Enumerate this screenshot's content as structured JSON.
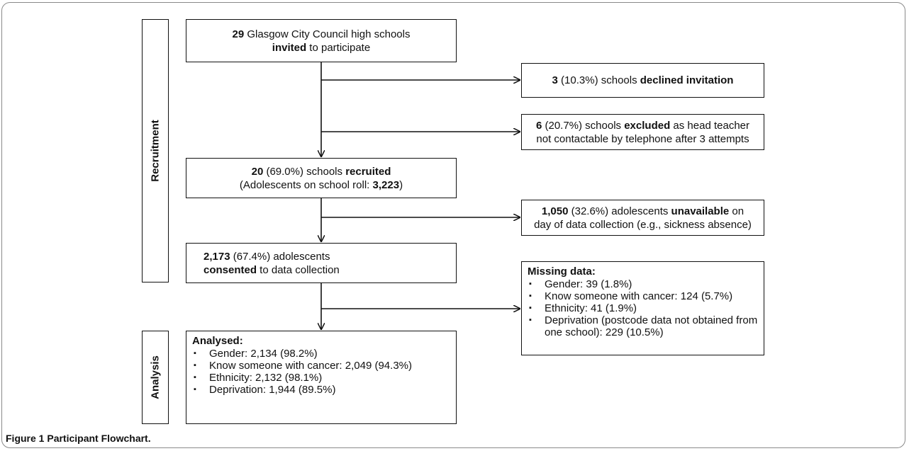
{
  "side_labels": {
    "recruitment": "Recruitment",
    "analysis": "Analysis"
  },
  "boxes": {
    "invited": {
      "bold1": "29",
      "t1": " Glasgow City Council high schools",
      "bold2": "invited",
      "t2": " to participate"
    },
    "declined": {
      "bold1": "3",
      "t1": " (10.3%) schools ",
      "bold2": "declined invitation"
    },
    "excluded": {
      "bold1": "6",
      "t1": " (20.7%) schools ",
      "bold2": "excluded",
      "t2": " as head teacher",
      "line2": "not contactable by telephone after 3 attempts"
    },
    "recruited": {
      "bold1": "20",
      "t1": " (69.0%) schools ",
      "bold2": "recruited",
      "line2a": "(Adolescents on school roll: ",
      "bold3": "3,223",
      "line2b": ")"
    },
    "unavailable": {
      "bold1": "1,050",
      "t1": " (32.6%) adolescents ",
      "bold2": "unavailable",
      "t2": " on",
      "line2": "day of data collection (e.g., sickness absence)"
    },
    "consented": {
      "bold1": "2,173",
      "t1": " (67.4%) adolescents",
      "bold2": "consented",
      "t2": " to data collection"
    }
  },
  "missing": {
    "title": "Missing data:",
    "items": [
      "Gender: 39 (1.8%)",
      "Know someone with cancer: 124 (5.7%)",
      "Ethnicity: 41 (1.9%)",
      "Deprivation (postcode data not obtained from one school): 229 (10.5%)"
    ]
  },
  "analysed": {
    "title": "Analysed:",
    "items": [
      "Gender: 2,134 (98.2%)",
      "Know someone with cancer: 2,049 (94.3%)",
      "Ethnicity: 2,132 (98.1%)",
      "Deprivation: 1,944 (89.5%)"
    ]
  },
  "caption": {
    "label": "Figure 1",
    "text": " Participant Flowchart."
  },
  "bullet_glyph": "▪"
}
